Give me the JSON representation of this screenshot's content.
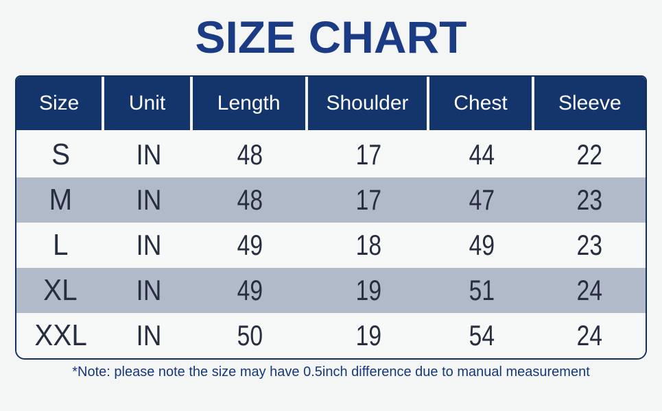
{
  "title": "SIZE CHART",
  "table": {
    "headers": [
      "Size",
      "Unit",
      "Length",
      "Shoulder",
      "Chest",
      "Sleeve"
    ],
    "rows": [
      {
        "size": "S",
        "unit": "IN",
        "length": "48",
        "shoulder": "17",
        "chest": "44",
        "sleeve": "22"
      },
      {
        "size": "M",
        "unit": "IN",
        "length": "48",
        "shoulder": "17",
        "chest": "47",
        "sleeve": "23"
      },
      {
        "size": "L",
        "unit": "IN",
        "length": "49",
        "shoulder": "18",
        "chest": "49",
        "sleeve": "23"
      },
      {
        "size": "XL",
        "unit": "IN",
        "length": "49",
        "shoulder": "19",
        "chest": "51",
        "sleeve": "24"
      },
      {
        "size": "XXL",
        "unit": "IN",
        "length": "50",
        "shoulder": "19",
        "chest": "54",
        "sleeve": "24"
      }
    ]
  },
  "note": "*Note: please note the size may have 0.5inch difference due to manual measurement",
  "colors": {
    "page_bg": "#f4f6f5",
    "title_text": "#1b3b85",
    "header_bg": "#14356b",
    "header_text": "#ffffff",
    "row_bg": "#f7f8f8",
    "row_alt_bg": "#b1bac8",
    "border": "#132f5e",
    "cell_text": "#262e40",
    "note_text": "#16377d"
  }
}
